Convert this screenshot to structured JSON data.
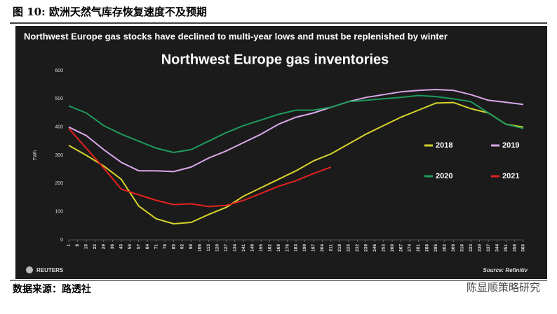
{
  "caption": "图 10:  欧洲天然气库存恢复速度不及预期",
  "source": "数据来源：路透社",
  "watermark": "陈显顺策略研究",
  "brand": "REUTERS",
  "credit": "Source: Refinitiv",
  "chart_data": {
    "type": "line",
    "subtitle": "Northwest Europe gas stocks have declined to multi-year lows and must be replenished by winter",
    "title": "Northwest Europe gas inventories",
    "y_label": "TWh",
    "x": [
      1,
      15,
      29,
      43,
      57,
      71,
      85,
      99,
      113,
      127,
      141,
      155,
      169,
      183,
      197,
      211,
      225,
      239,
      253,
      267,
      281,
      295,
      309,
      323,
      337,
      351,
      365
    ],
    "series": [
      {
        "name": "2018",
        "color": "#d6d42c",
        "values": [
          335,
          300,
          262,
          215,
          120,
          75,
          57,
          62,
          90,
          115,
          155,
          185,
          215,
          245,
          280,
          305,
          340,
          375,
          405,
          435,
          460,
          485,
          487,
          465,
          450,
          410,
          400
        ]
      },
      {
        "name": "2019",
        "color": "#d9a8ea",
        "values": [
          400,
          370,
          320,
          275,
          245,
          245,
          242,
          258,
          290,
          315,
          345,
          375,
          410,
          435,
          450,
          470,
          490,
          505,
          515,
          525,
          530,
          533,
          530,
          515,
          495,
          488,
          480
        ]
      },
      {
        "name": "2020",
        "color": "#1f9a5c",
        "values": [
          475,
          450,
          405,
          375,
          350,
          325,
          310,
          320,
          350,
          380,
          405,
          425,
          445,
          460,
          460,
          470,
          490,
          495,
          500,
          505,
          512,
          508,
          500,
          490,
          450,
          410,
          395
        ]
      },
      {
        "name": "2021",
        "color": "#e3221e",
        "values": [
          395,
          325,
          255,
          180,
          160,
          140,
          125,
          128,
          118,
          122,
          140,
          165,
          190,
          210,
          235,
          258,
          null,
          null,
          null,
          null,
          null,
          null,
          null,
          null,
          null,
          null,
          null
        ]
      }
    ],
    "xlim": [
      1,
      365
    ],
    "xticks": [
      1,
      8,
      15,
      22,
      29,
      36,
      43,
      50,
      57,
      64,
      71,
      78,
      85,
      92,
      99,
      106,
      113,
      120,
      127,
      134,
      141,
      148,
      155,
      162,
      169,
      176,
      183,
      190,
      197,
      204,
      211,
      218,
      225,
      232,
      239,
      246,
      253,
      260,
      267,
      274,
      281,
      288,
      295,
      302,
      309,
      316,
      323,
      330,
      337,
      344,
      351,
      358,
      365
    ],
    "ylim": [
      0,
      600
    ],
    "yticks": [
      0,
      100,
      200,
      300,
      400,
      500,
      600
    ],
    "grid": false
  }
}
